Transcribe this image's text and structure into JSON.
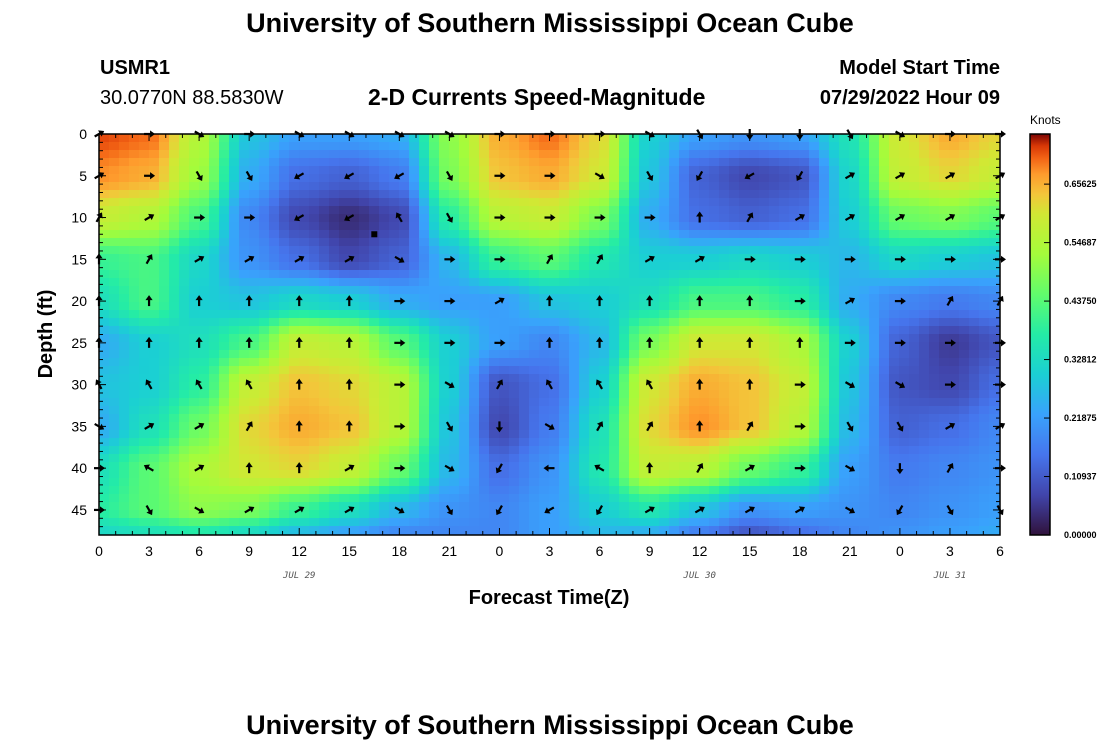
{
  "header": {
    "title": "University of Southern Mississippi Ocean Cube",
    "station_id": "USMR1",
    "coordinates": "30.0770N  88.5830W",
    "subtitle": "2-D Currents Speed-Magnitude",
    "model_start_label": "Model Start Time",
    "model_start_value": "07/29/2022 Hour 09"
  },
  "footer": {
    "title": "University of Southern Mississippi Ocean Cube"
  },
  "chart_data": {
    "type": "heatmap",
    "title": "2-D Currents Speed-Magnitude",
    "xlabel": "Forecast Time(Z)",
    "ylabel": "Depth (ft)",
    "x_tick_labels": [
      "0",
      "3",
      "6",
      "9",
      "12",
      "15",
      "18",
      "21",
      "0",
      "3",
      "6",
      "9",
      "12",
      "15",
      "18",
      "21",
      "0",
      "3",
      "6"
    ],
    "x_range_hours": [
      0,
      54
    ],
    "date_labels": [
      {
        "text": "JUL 29",
        "hour": 12
      },
      {
        "text": "JUL 30",
        "hour": 36
      },
      {
        "text": "JUL 31",
        "hour": 51
      }
    ],
    "y_tick_labels": [
      "0",
      "5",
      "10",
      "15",
      "20",
      "25",
      "30",
      "35",
      "40",
      "45"
    ],
    "y_range_ft": [
      0,
      48
    ],
    "colorbar": {
      "title": "Knots",
      "tick_labels": [
        "0.00000",
        "0.10937",
        "0.21875",
        "0.32812",
        "0.43750",
        "0.54687",
        "0.65625"
      ],
      "range": [
        0,
        0.75
      ]
    },
    "colors": {
      "min": "#30123b",
      "low": "#3e9bfe",
      "mid": "#a2fc3c",
      "high": "#fb8022",
      "max": "#7a0403"
    },
    "speed_field": {
      "description": "approximate current speed in knots sampled on a 3-hour x 5-ft grid",
      "hours": [
        0,
        3,
        6,
        9,
        12,
        15,
        18,
        21,
        24,
        27,
        30,
        33,
        36,
        39,
        42,
        45,
        48,
        51,
        54
      ],
      "depths": [
        0,
        5,
        10,
        15,
        20,
        25,
        30,
        35,
        40,
        45,
        48
      ],
      "values": [
        [
          0.72,
          0.7,
          0.55,
          0.28,
          0.22,
          0.22,
          0.24,
          0.5,
          0.66,
          0.7,
          0.62,
          0.3,
          0.22,
          0.2,
          0.22,
          0.35,
          0.6,
          0.66,
          0.62
        ],
        [
          0.68,
          0.66,
          0.52,
          0.24,
          0.14,
          0.12,
          0.16,
          0.48,
          0.64,
          0.66,
          0.6,
          0.28,
          0.12,
          0.08,
          0.1,
          0.32,
          0.58,
          0.62,
          0.58
        ],
        [
          0.58,
          0.55,
          0.42,
          0.18,
          0.08,
          0.04,
          0.08,
          0.38,
          0.56,
          0.58,
          0.48,
          0.24,
          0.14,
          0.12,
          0.14,
          0.3,
          0.46,
          0.48,
          0.44
        ],
        [
          0.4,
          0.42,
          0.32,
          0.2,
          0.14,
          0.08,
          0.12,
          0.26,
          0.4,
          0.44,
          0.36,
          0.3,
          0.3,
          0.32,
          0.3,
          0.26,
          0.32,
          0.3,
          0.28
        ],
        [
          0.34,
          0.42,
          0.3,
          0.28,
          0.32,
          0.3,
          0.24,
          0.22,
          0.22,
          0.28,
          0.3,
          0.34,
          0.42,
          0.42,
          0.38,
          0.24,
          0.18,
          0.16,
          0.18
        ],
        [
          0.24,
          0.3,
          0.34,
          0.42,
          0.58,
          0.56,
          0.44,
          0.3,
          0.22,
          0.18,
          0.26,
          0.48,
          0.6,
          0.6,
          0.54,
          0.3,
          0.12,
          0.06,
          0.1
        ],
        [
          0.28,
          0.3,
          0.38,
          0.58,
          0.64,
          0.62,
          0.56,
          0.3,
          0.1,
          0.14,
          0.3,
          0.6,
          0.66,
          0.64,
          0.58,
          0.28,
          0.1,
          0.08,
          0.14
        ],
        [
          0.24,
          0.34,
          0.46,
          0.62,
          0.66,
          0.64,
          0.56,
          0.28,
          0.08,
          0.16,
          0.34,
          0.62,
          0.68,
          0.64,
          0.56,
          0.26,
          0.12,
          0.14,
          0.18
        ],
        [
          0.34,
          0.44,
          0.54,
          0.6,
          0.62,
          0.58,
          0.46,
          0.26,
          0.14,
          0.2,
          0.36,
          0.58,
          0.56,
          0.46,
          0.4,
          0.22,
          0.16,
          0.18,
          0.2
        ],
        [
          0.38,
          0.44,
          0.5,
          0.48,
          0.4,
          0.34,
          0.26,
          0.2,
          0.18,
          0.22,
          0.3,
          0.36,
          0.28,
          0.2,
          0.22,
          0.2,
          0.18,
          0.2,
          0.22
        ],
        [
          0.32,
          0.34,
          0.36,
          0.32,
          0.26,
          0.22,
          0.18,
          0.18,
          0.18,
          0.22,
          0.26,
          0.24,
          0.16,
          0.1,
          0.14,
          0.18,
          0.2,
          0.22,
          0.24
        ]
      ]
    },
    "vector_directions_deg": {
      "description": "approximate arrow heading (degrees, 0 = up/north, clockwise) at each plotted arrow, rows by depth 0..45 step 5, columns by hour 0..54 step 3",
      "rows": [
        [
          60,
          90,
          120,
          90,
          120,
          120,
          120,
          120,
          90,
          90,
          90,
          120,
          150,
          180,
          180,
          150,
          120,
          90,
          90
        ],
        [
          60,
          90,
          150,
          150,
          240,
          240,
          240,
          150,
          90,
          90,
          120,
          150,
          210,
          240,
          210,
          60,
          60,
          60,
          60
        ],
        [
          30,
          60,
          90,
          90,
          240,
          240,
          330,
          150,
          90,
          90,
          90,
          90,
          0,
          30,
          60,
          60,
          60,
          60,
          60
        ],
        [
          0,
          30,
          60,
          60,
          60,
          60,
          120,
          90,
          90,
          30,
          30,
          60,
          60,
          90,
          90,
          90,
          90,
          90,
          90
        ],
        [
          0,
          0,
          0,
          0,
          0,
          0,
          90,
          90,
          60,
          0,
          0,
          0,
          0,
          0,
          90,
          60,
          90,
          30,
          30
        ],
        [
          0,
          0,
          0,
          0,
          0,
          0,
          90,
          90,
          90,
          0,
          0,
          0,
          0,
          0,
          0,
          90,
          90,
          90,
          90
        ],
        [
          330,
          330,
          330,
          330,
          0,
          0,
          90,
          120,
          30,
          330,
          330,
          330,
          0,
          0,
          90,
          120,
          120,
          90,
          90
        ],
        [
          120,
          60,
          60,
          30,
          0,
          0,
          90,
          150,
          180,
          120,
          30,
          30,
          0,
          30,
          90,
          150,
          150,
          60,
          60
        ],
        [
          90,
          300,
          60,
          0,
          0,
          60,
          90,
          120,
          210,
          270,
          300,
          0,
          30,
          60,
          90,
          120,
          180,
          30,
          90
        ],
        [
          90,
          150,
          120,
          60,
          60,
          60,
          120,
          150,
          210,
          240,
          210,
          60,
          60,
          60,
          60,
          120,
          210,
          150,
          150
        ]
      ]
    },
    "marker": {
      "hour": 16.5,
      "depth": 12
    }
  }
}
